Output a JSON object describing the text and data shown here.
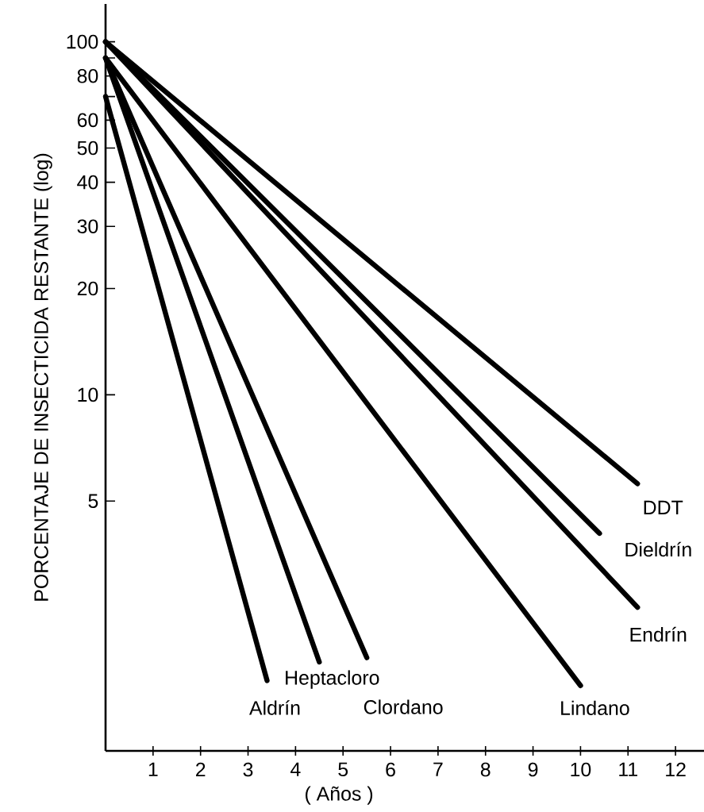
{
  "chart_data": {
    "type": "line",
    "xlabel": "( Años )",
    "ylabel": "PORCENTAJE DE INSECTICIDA RESTANTE (log)",
    "log": "y",
    "xlim": [
      0,
      12.6
    ],
    "ylim": [
      0.98,
      128
    ],
    "xticks": [
      1,
      2,
      3,
      4,
      5,
      6,
      7,
      8,
      9,
      10,
      11,
      12
    ],
    "yticks": [
      5,
      10,
      20,
      30,
      40,
      50,
      60,
      {
        "value": 70,
        "label": null
      },
      80,
      {
        "value": 90,
        "label": null
      },
      100
    ],
    "series": [
      {
        "name": "DDT",
        "color": "#000000",
        "x": [
          0,
          11.2
        ],
        "values": [
          100,
          5.6
        ]
      },
      {
        "name": "Dieldrín",
        "color": "#000000",
        "x": [
          0,
          10.4
        ],
        "values": [
          100,
          4.05
        ]
      },
      {
        "name": "Endrín",
        "color": "#000000",
        "x": [
          0,
          11.2
        ],
        "values": [
          100,
          2.5
        ]
      },
      {
        "name": "Lindano",
        "color": "#000000",
        "x": [
          0,
          10
        ],
        "values": [
          90,
          1.5
        ]
      },
      {
        "name": "Clordano",
        "color": "#000000",
        "x": [
          0,
          5.5
        ],
        "values": [
          90,
          1.8
        ]
      },
      {
        "name": "Heptacloro",
        "color": "#000000",
        "x": [
          0,
          4.5
        ],
        "values": [
          90,
          1.75
        ]
      },
      {
        "name": "Aldrín",
        "color": "#000000",
        "x": [
          0,
          3.4
        ],
        "values": [
          70,
          1.55
        ]
      }
    ]
  }
}
